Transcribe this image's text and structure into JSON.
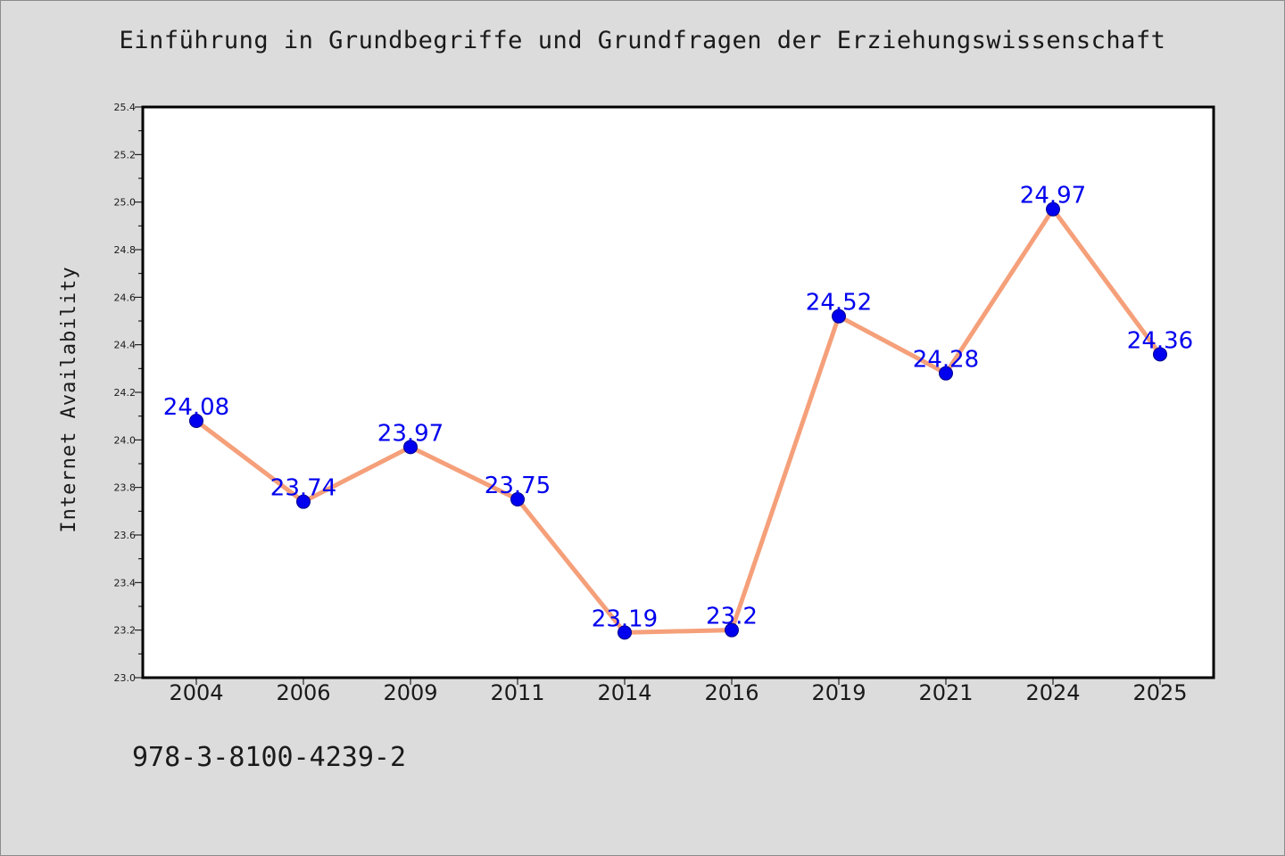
{
  "chart_data": {
    "type": "line",
    "title": "Einführung in Grundbegriffe und Grundfragen der Erziehungswissenschaft",
    "ylabel": "Internet Availability",
    "xlabel": "",
    "categories": [
      "2004",
      "2006",
      "2009",
      "2011",
      "2014",
      "2016",
      "2019",
      "2021",
      "2024",
      "2025"
    ],
    "series": [
      {
        "values": [
          24.08,
          23.74,
          23.97,
          23.75,
          23.19,
          23.2,
          24.52,
          24.28,
          24.97,
          24.36
        ],
        "labels": [
          "24.08",
          "23.74",
          "23.97",
          "23.75",
          "23.19",
          "23.2",
          "24.52",
          "24.28",
          "24.97",
          "24.36"
        ],
        "line_color": "#f5a07a",
        "marker_color": "#0000ee",
        "label_color": "#0000ee"
      }
    ],
    "ylim": [
      23.0,
      25.4
    ],
    "yticks": [
      "23.0",
      "23.2",
      "23.4",
      "23.6",
      "23.8",
      "24.0",
      "24.2",
      "24.4",
      "24.6",
      "24.8",
      "25.0",
      "25.2",
      "25.4"
    ],
    "grid": false,
    "legend": "none"
  },
  "footnote": "978-3-8100-4239-2",
  "colors": {
    "background": "#dcdcdc",
    "plot_area": "#ffffff",
    "axis": "#000000"
  }
}
